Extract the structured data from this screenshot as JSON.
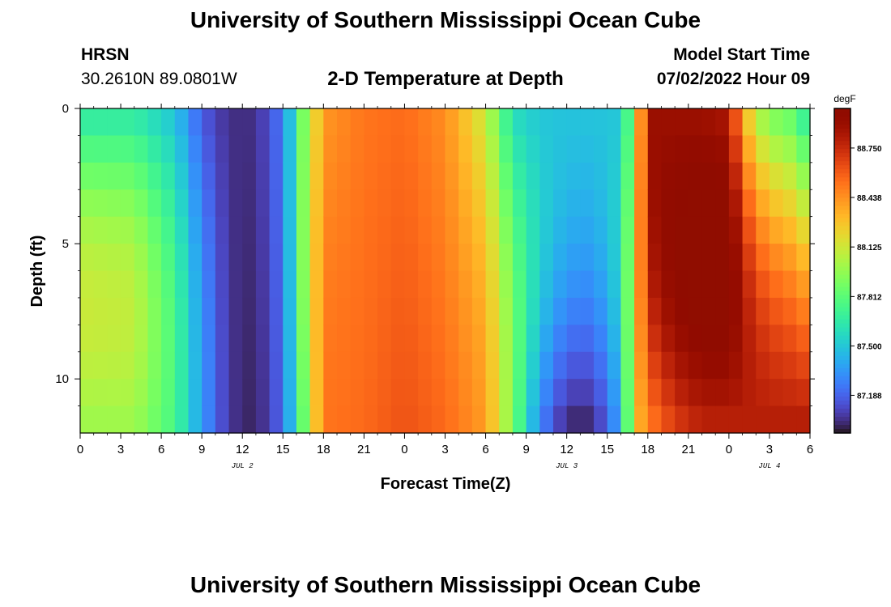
{
  "header": {
    "title": "University of Southern Mississippi Ocean Cube",
    "station": "HRSN",
    "coordinates": "30.2610N  89.0801W",
    "plot_title": "2-D Temperature at Depth",
    "model_start_label": "Model Start Time",
    "model_start_value": "07/02/2022 Hour 09"
  },
  "footer": {
    "title": "University of Southern Mississippi Ocean Cube"
  },
  "colors": {
    "colormap": "turbo",
    "text": "#000000",
    "background": "#ffffff"
  },
  "chart_data": {
    "type": "heatmap",
    "title": "2-D Temperature at Depth",
    "xlabel": "Forecast Time(Z)",
    "ylabel": "Depth (ft)",
    "x_tick_labels": [
      "0",
      "3",
      "6",
      "9",
      "12",
      "15",
      "18",
      "21",
      "0",
      "3",
      "6",
      "9",
      "12",
      "15",
      "18",
      "21",
      "0",
      "3",
      "6"
    ],
    "x_tick_hours": [
      0,
      3,
      6,
      9,
      12,
      15,
      18,
      21,
      24,
      27,
      30,
      33,
      36,
      39,
      42,
      45,
      48,
      51,
      54
    ],
    "x_date_labels": [
      {
        "label": "JUL 2",
        "hour": 12
      },
      {
        "label": "JUL 3",
        "hour": 36
      },
      {
        "label": "JUL 4",
        "hour": 51
      }
    ],
    "xlim_hours": [
      0,
      54
    ],
    "y_tick_labels": [
      "0",
      "5",
      "10"
    ],
    "y_ticks": [
      0,
      5,
      10
    ],
    "ylim": [
      0,
      12
    ],
    "y_inverted": true,
    "colorbar": {
      "unit": "degF",
      "ticks": [
        "88.750",
        "88.438",
        "88.125",
        "87.812",
        "87.500",
        "87.188"
      ],
      "tick_values": [
        88.75,
        88.438,
        88.125,
        87.812,
        87.5,
        87.188
      ],
      "range": [
        86.95,
        89.0
      ]
    },
    "grid": false,
    "time_step_hours": 1,
    "depths_ft": [
      0.5,
      1.5,
      2.5,
      3.5,
      4.5,
      5.5,
      6.5,
      7.5,
      8.5,
      9.5,
      10.5,
      11.5
    ],
    "profile_hours": [
      0,
      4,
      7,
      9,
      11,
      13,
      15,
      16.5,
      18,
      21,
      24,
      27,
      30,
      32,
      34,
      36,
      38,
      40,
      41,
      42,
      44,
      46,
      48,
      49,
      50,
      51,
      53,
      54
    ],
    "profile_surface": [
      87.68,
      87.68,
      87.5,
      87.17,
      87.03,
      87.03,
      87.25,
      87.9,
      88.42,
      88.52,
      88.55,
      88.45,
      88.12,
      87.6,
      87.5,
      87.48,
      87.48,
      87.5,
      88.0,
      88.9,
      88.9,
      88.9,
      88.85,
      88.4,
      88.1,
      87.95,
      87.85,
      87.6
    ],
    "profile_bottom": [
      88.0,
      88.0,
      87.75,
      87.35,
      87.05,
      86.99,
      87.2,
      87.85,
      88.52,
      88.55,
      88.62,
      88.55,
      88.4,
      87.9,
      87.3,
      87.02,
      87.02,
      87.4,
      88.25,
      88.5,
      88.7,
      88.8,
      88.8,
      88.8,
      88.8,
      88.8,
      88.8,
      88.8
    ],
    "profile_mid_boost": [
      0.25,
      0.22,
      0.1,
      0.05,
      0.0,
      0.0,
      0.0,
      0.05,
      0.02,
      0.0,
      0.0,
      0.0,
      0.05,
      0.1,
      0.12,
      0.1,
      0.08,
      0.1,
      0.05,
      0.1,
      0.18,
      0.2,
      0.22,
      0.2,
      0.18,
      0.15,
      0.1,
      0.1
    ]
  }
}
